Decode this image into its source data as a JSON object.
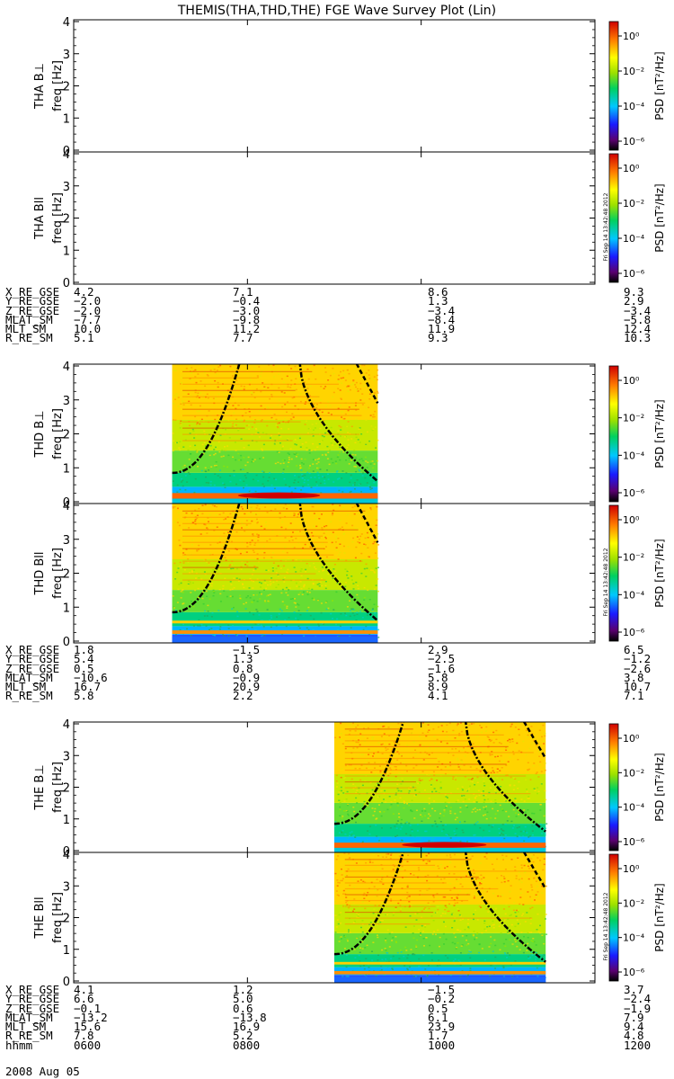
{
  "title": "THEMIS(THA,THD,THE) FGE Wave Survey Plot (Lin)",
  "ylabel_unit": "freq [Hz]",
  "colorbar": {
    "label": "PSD [nT²/Hz]",
    "ticks": [
      "10⁰",
      "10⁻²",
      "10⁻⁴",
      "10⁻⁶"
    ],
    "stamp": "Fri Sep 14 13:42:48 2012"
  },
  "date": "2008 Aug 05",
  "time_ticks": [
    "0600",
    "0800",
    "1000",
    "1200"
  ],
  "chart_data": {
    "type": "heatmap",
    "x_axis": {
      "label": "hhmm",
      "range": [
        "0600",
        "1200"
      ]
    },
    "y_range": [
      0,
      4
    ],
    "y_ticks": [
      0,
      1,
      2,
      3,
      4
    ],
    "colorscale": "log PSD, 1e-6 to 1e1 nT²/Hz",
    "panels": [
      {
        "probe": "THA",
        "component": "B⊥",
        "label": "THA B⊥",
        "data_interval": null
      },
      {
        "probe": "THA",
        "component": "Bll",
        "label": "THA Bll",
        "data_interval": null
      },
      {
        "probe": "THD",
        "component": "B⊥",
        "label": "THD B⊥",
        "data_interval": [
          "0708",
          "0930"
        ]
      },
      {
        "probe": "THD",
        "component": "Bll",
        "label": "THD Bll",
        "data_interval": [
          "0708",
          "0930"
        ]
      },
      {
        "probe": "THE",
        "component": "B⊥",
        "label": "THE B⊥",
        "data_interval": [
          "0900",
          "1126"
        ]
      },
      {
        "probe": "THE",
        "component": "Bll",
        "label": "THE Bll",
        "data_interval": [
          "0900",
          "1126"
        ]
      }
    ]
  },
  "ephemeris": [
    {
      "probe": "THA",
      "rows": [
        {
          "label": "X_RE_GSE",
          "values": [
            "4.2",
            "7.1",
            "8.6",
            "9.3"
          ]
        },
        {
          "label": "Y_RE_GSE",
          "values": [
            "−2.0",
            "−0.4",
            "1.3",
            "2.9"
          ]
        },
        {
          "label": "Z_RE_GSE",
          "values": [
            "−2.0",
            "−3.0",
            "−3.4",
            "−3.4"
          ]
        },
        {
          "label": "MLAT_SM",
          "values": [
            "−7.7",
            "−9.8",
            "−8.4",
            "−5.8"
          ]
        },
        {
          "label": "MLT_SM",
          "values": [
            "10.0",
            "11.2",
            "11.9",
            "12.4"
          ]
        },
        {
          "label": "R_RE_SM",
          "values": [
            "5.1",
            "7.7",
            "9.3",
            "10.3"
          ]
        }
      ]
    },
    {
      "probe": "THD",
      "rows": [
        {
          "label": "X_RE_GSE",
          "values": [
            "1.8",
            "−1.5",
            "2.9",
            "6.5"
          ]
        },
        {
          "label": "Y_RE_GSE",
          "values": [
            "5.4",
            "1.3",
            "−2.5",
            "−1.2"
          ]
        },
        {
          "label": "Z_RE_GSE",
          "values": [
            "0.5",
            "0.8",
            "−1.6",
            "−2.6"
          ]
        },
        {
          "label": "MLAT_SM",
          "values": [
            "−10.6",
            "−0.9",
            "5.8",
            "3.8"
          ]
        },
        {
          "label": "MLT_SM",
          "values": [
            "16.7",
            "20.9",
            "8.9",
            "10.7"
          ]
        },
        {
          "label": "R_RE_SM",
          "values": [
            "5.8",
            "2.2",
            "4.1",
            "7.1"
          ]
        }
      ]
    },
    {
      "probe": "THE",
      "rows": [
        {
          "label": "X_RE_GSE",
          "values": [
            "4.1",
            "1.2",
            "−1.5",
            "3.7"
          ]
        },
        {
          "label": "Y_RE_GSE",
          "values": [
            "6.6",
            "5.0",
            "−0.2",
            "−2.4"
          ]
        },
        {
          "label": "Z_RE_GSE",
          "values": [
            "−0.1",
            "0.6",
            "0.5",
            "−1.9"
          ]
        },
        {
          "label": "MLAT_SM",
          "values": [
            "−13.2",
            "−13.8",
            "6.1",
            "7.9"
          ]
        },
        {
          "label": "MLT_SM",
          "values": [
            "15.6",
            "16.9",
            "23.9",
            "9.4"
          ]
        },
        {
          "label": "R_RE_SM",
          "values": [
            "7.8",
            "5.2",
            "1.7",
            "4.8"
          ]
        },
        {
          "label": "hhmm",
          "values": [
            "0600",
            "0800",
            "1000",
            "1200"
          ]
        }
      ]
    }
  ]
}
